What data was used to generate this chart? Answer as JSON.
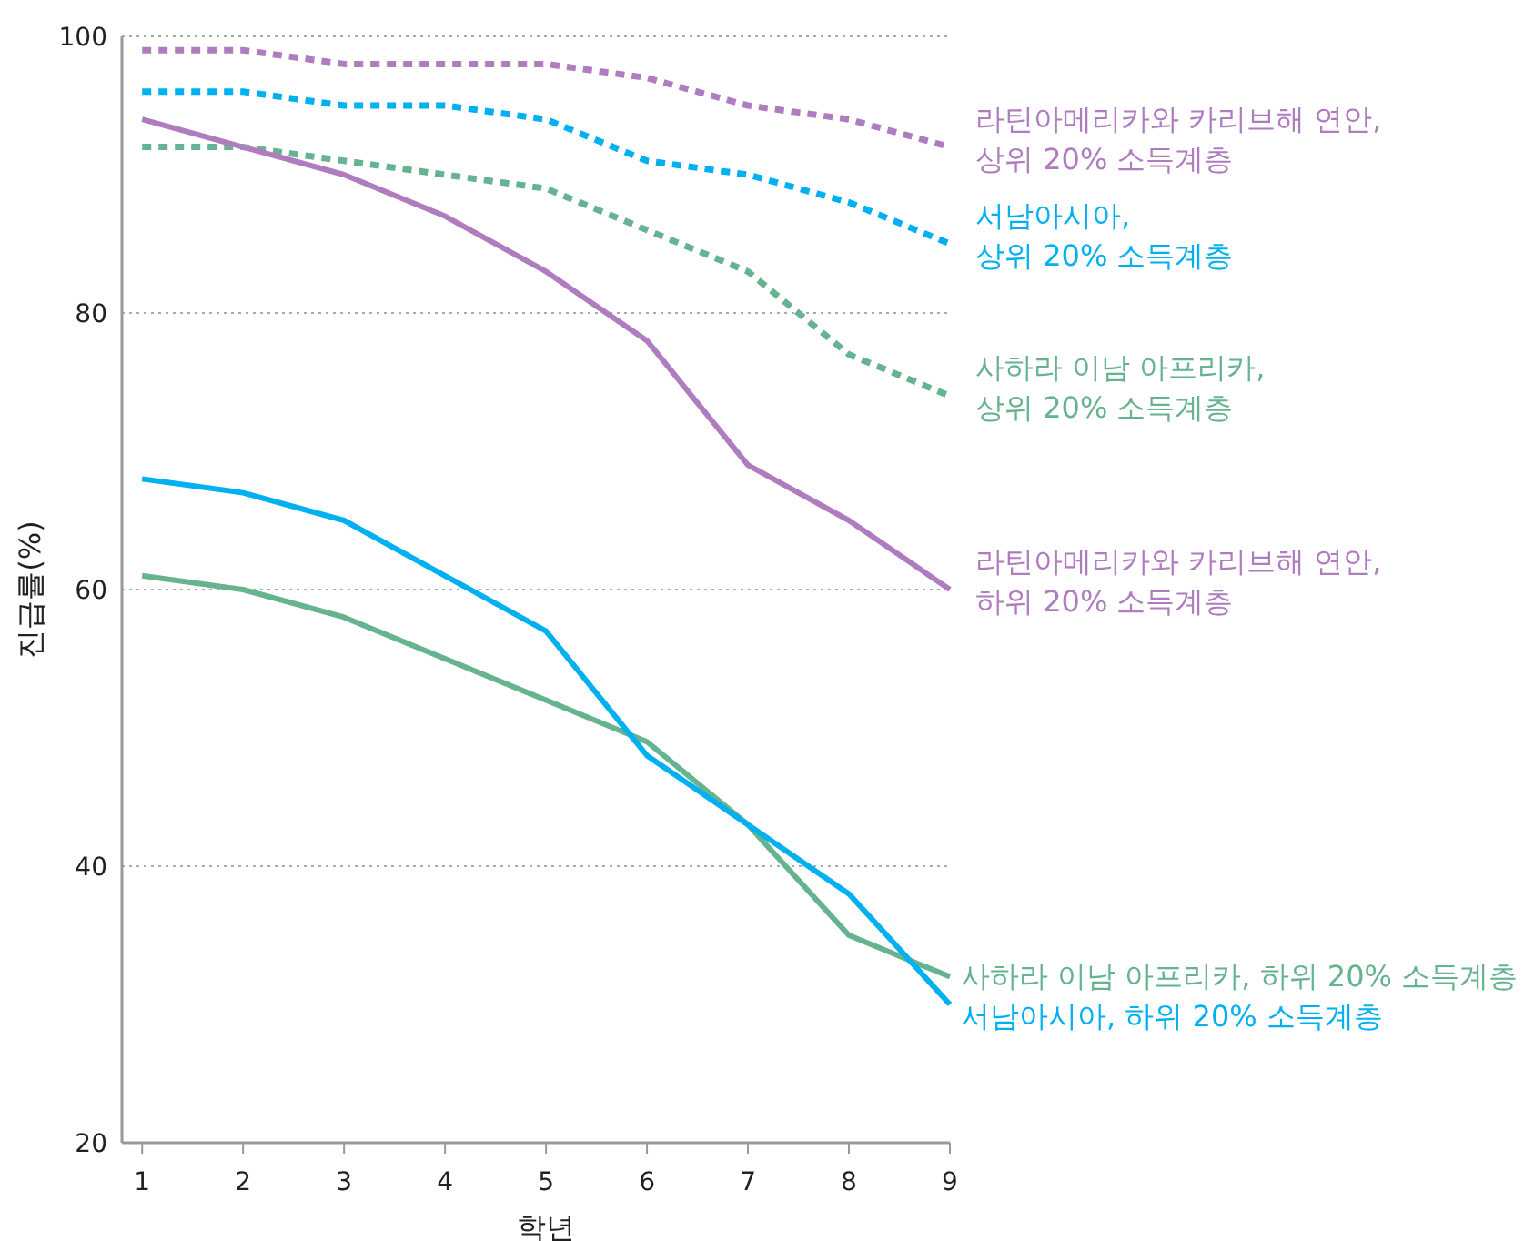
{
  "chart_data": {
    "type": "line",
    "xlabel": "학년",
    "ylabel": "진급률(%)",
    "x": [
      1,
      2,
      3,
      4,
      5,
      6,
      7,
      8,
      9
    ],
    "xlim": [
      0.8,
      9
    ],
    "xticks": [
      1,
      2,
      3,
      4,
      5,
      6,
      7,
      8,
      9
    ],
    "ylim": [
      20,
      100
    ],
    "yticks": [
      20,
      40,
      60,
      80,
      100
    ],
    "grid": "y",
    "legend": false,
    "marker": "none",
    "series": [
      {
        "name": "라틴아메리카와 카리브해 연안, 상위 20% 소득계층",
        "color": "#b07cc0",
        "line_style": "dashed",
        "values": [
          99,
          99,
          98,
          98,
          98,
          97,
          95,
          94,
          92
        ]
      },
      {
        "name": "서남아시아, 상위 20% 소득계층",
        "color": "#00b0f0",
        "line_style": "dashed",
        "values": [
          96,
          96,
          95,
          95,
          94,
          91,
          90,
          88,
          85
        ]
      },
      {
        "name": "사하라 이남 아프리카, 상위 20% 소득계층",
        "color": "#66b38f",
        "line_style": "dashed",
        "values": [
          92,
          92,
          91,
          90,
          89,
          86,
          83,
          77,
          74
        ]
      },
      {
        "name": "라틴아메리카와 카리브해 연안, 하위 20% 소득계층",
        "color": "#b07cc0",
        "line_style": "solid",
        "values": [
          94,
          92,
          90,
          87,
          83,
          78,
          69,
          65,
          60
        ]
      },
      {
        "name": "사하라 이남 아프리카, 하위 20% 소득계층",
        "color": "#66b38f",
        "line_style": "solid",
        "values": [
          61,
          60,
          58,
          55,
          52,
          49,
          43,
          35,
          32
        ]
      },
      {
        "name": "서남아시아, 하위 20% 소득계층",
        "color": "#00b0f0",
        "line_style": "solid",
        "values": [
          68,
          67,
          65,
          61,
          57,
          48,
          43,
          38,
          30
        ]
      }
    ]
  }
}
